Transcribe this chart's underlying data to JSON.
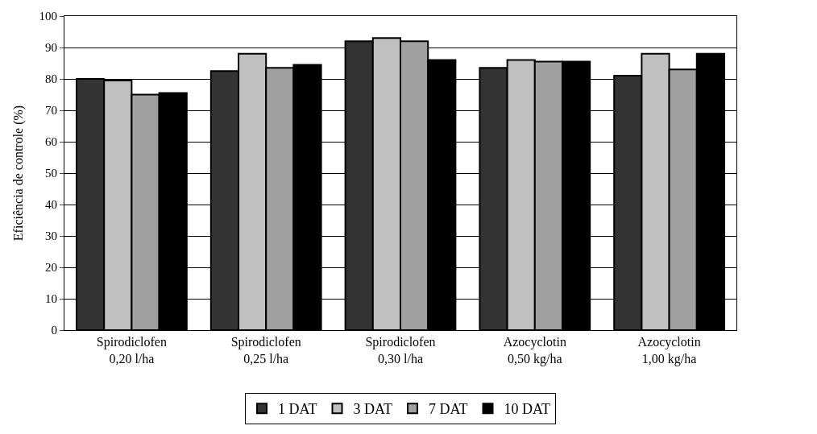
{
  "chart_data": {
    "type": "bar",
    "ylabel": "Eficiência de controle (%)",
    "categories": [
      "Spirodiclofen\n0,20 l/ha",
      "Spirodiclofen\n0,25 l/ha",
      "Spirodiclofen\n0,30 l/ha",
      "Azocyclotin\n0,50 kg/ha",
      "Azocyclotin\n1,00 kg/ha"
    ],
    "series": [
      {
        "name": "1 DAT",
        "color": "#333333",
        "values": [
          80,
          82.5,
          92,
          83.5,
          81
        ]
      },
      {
        "name": "3 DAT",
        "color": "#c0c0c0",
        "values": [
          79.5,
          88,
          93,
          86,
          88
        ]
      },
      {
        "name": "7 DAT",
        "color": "#a0a0a0",
        "values": [
          75,
          83.5,
          92,
          85.5,
          83
        ]
      },
      {
        "name": "10 DAT",
        "color": "#000000",
        "values": [
          75.5,
          84.5,
          86,
          85.5,
          88
        ]
      }
    ],
    "ylim": [
      0,
      100
    ],
    "yticks": [
      0,
      10,
      20,
      30,
      40,
      50,
      60,
      70,
      80,
      90,
      100
    ],
    "grid": "y",
    "legend": "bottom"
  }
}
